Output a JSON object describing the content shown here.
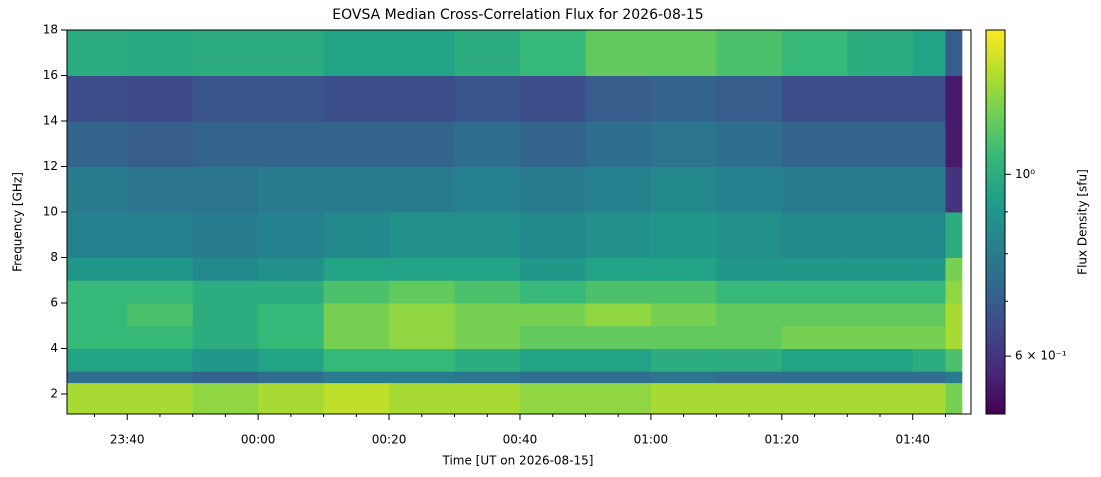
{
  "chart_data": {
    "type": "heatmap",
    "title": "EOVSA Median Cross-Correlation Flux for 2026-08-15",
    "xlabel": "Time [UT on 2026-08-15]",
    "ylabel": "Frequency [GHz]",
    "colorbar_label": "Flux Density [sfu]",
    "colormap": "viridis",
    "color_scale": "log",
    "xlim": [
      -29.2,
      108.9
    ],
    "xticks": [
      {
        "value": -20,
        "label": "23:40"
      },
      {
        "value": 0,
        "label": "00:00"
      },
      {
        "value": 20,
        "label": "00:20"
      },
      {
        "value": 40,
        "label": "00:40"
      },
      {
        "value": 60,
        "label": "01:00"
      },
      {
        "value": 80,
        "label": "01:20"
      },
      {
        "value": 100,
        "label": "01:40"
      }
    ],
    "xminorticks": [
      -25,
      -15,
      -10,
      -5,
      5,
      10,
      15,
      25,
      30,
      35,
      45,
      50,
      55,
      65,
      70,
      75,
      85,
      90,
      95,
      105
    ],
    "ylim": [
      1.12,
      18
    ],
    "yticks": [
      2,
      4,
      6,
      8,
      10,
      12,
      14,
      16,
      18
    ],
    "clim": [
      0.51,
      1.5
    ],
    "cticks": [
      {
        "value": 1,
        "label": "10⁰"
      },
      {
        "value": 0.6,
        "label": "6 × 10⁻¹"
      }
    ],
    "cminorticks": [
      0.7,
      0.8,
      0.9
    ],
    "x_edges": [
      -29.2,
      -20,
      -10,
      0,
      10,
      20,
      30,
      40,
      50,
      60,
      70,
      80,
      90,
      100,
      105,
      107.5
    ],
    "y_edges": [
      1.12,
      2.5,
      3,
      4,
      5,
      6,
      7,
      8,
      10,
      12,
      14,
      16,
      18
    ],
    "values": [
      [
        1.3,
        1.3,
        1.25,
        1.3,
        1.35,
        1.3,
        1.3,
        1.25,
        1.25,
        1.3,
        1.3,
        1.3,
        1.3,
        1.3,
        1.2
      ],
      [
        0.75,
        0.75,
        0.72,
        0.75,
        0.8,
        0.8,
        0.78,
        0.75,
        0.75,
        0.78,
        0.75,
        0.75,
        0.75,
        0.75,
        0.8
      ],
      [
        0.95,
        0.95,
        0.9,
        0.95,
        1.05,
        1.05,
        1.0,
        0.95,
        0.95,
        1.0,
        1.0,
        0.95,
        0.95,
        1.0,
        1.1
      ],
      [
        1.05,
        1.05,
        1.0,
        1.05,
        1.2,
        1.25,
        1.2,
        1.15,
        1.15,
        1.15,
        1.15,
        1.2,
        1.2,
        1.2,
        1.3
      ],
      [
        1.05,
        1.1,
        1.0,
        1.05,
        1.2,
        1.25,
        1.2,
        1.2,
        1.25,
        1.2,
        1.15,
        1.15,
        1.15,
        1.15,
        1.3
      ],
      [
        1.05,
        1.05,
        1.0,
        1.0,
        1.1,
        1.15,
        1.1,
        1.05,
        1.1,
        1.1,
        1.05,
        1.05,
        1.05,
        1.05,
        1.25
      ],
      [
        0.9,
        0.9,
        0.85,
        0.88,
        0.95,
        0.95,
        0.95,
        0.9,
        0.95,
        0.95,
        0.9,
        0.9,
        0.9,
        0.9,
        1.2
      ],
      [
        0.82,
        0.82,
        0.8,
        0.82,
        0.85,
        0.88,
        0.88,
        0.85,
        0.88,
        0.9,
        0.88,
        0.85,
        0.85,
        0.85,
        1.0
      ],
      [
        0.8,
        0.78,
        0.78,
        0.8,
        0.8,
        0.8,
        0.82,
        0.8,
        0.82,
        0.85,
        0.82,
        0.8,
        0.8,
        0.8,
        0.6
      ],
      [
        0.72,
        0.7,
        0.72,
        0.72,
        0.72,
        0.72,
        0.75,
        0.72,
        0.75,
        0.78,
        0.75,
        0.72,
        0.72,
        0.72,
        0.55
      ],
      [
        0.66,
        0.65,
        0.68,
        0.68,
        0.66,
        0.66,
        0.68,
        0.66,
        0.7,
        0.72,
        0.7,
        0.66,
        0.66,
        0.66,
        0.55
      ],
      [
        1.0,
        0.98,
        1.0,
        1.0,
        0.95,
        0.95,
        1.0,
        1.05,
        1.15,
        1.15,
        1.1,
        1.05,
        1.0,
        0.95,
        0.7
      ]
    ]
  }
}
